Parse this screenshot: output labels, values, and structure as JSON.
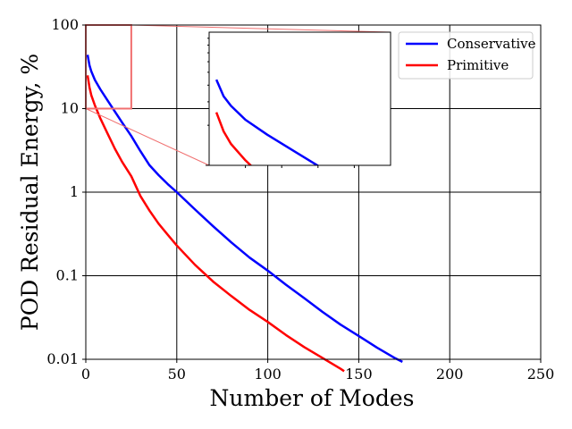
{
  "chart_data": {
    "type": "line",
    "xlabel": "Number of Modes",
    "ylabel": "POD Residual Energy, %",
    "xlim": [
      0,
      250
    ],
    "ylim": [
      0.01,
      100
    ],
    "yscale": "log",
    "xticks": [
      0,
      50,
      100,
      150,
      200,
      250
    ],
    "xtick_labels": [
      "0",
      "50",
      "100",
      "150",
      "200",
      "250"
    ],
    "yticks": [
      0.01,
      0.1,
      1,
      10,
      100
    ],
    "ytick_labels": [
      "0.01",
      "0.1",
      "1",
      "10",
      "100"
    ],
    "grid": true,
    "legend_position": "top-right",
    "series": [
      {
        "name": "Conservative",
        "color": "#0000ff",
        "x": [
          1,
          2,
          3,
          5,
          8,
          12,
          16,
          20,
          25,
          30,
          35,
          40,
          45,
          50,
          60,
          70,
          80,
          90,
          100,
          110,
          120,
          130,
          140,
          150,
          160,
          170,
          174
        ],
        "y": [
          44,
          33,
          28,
          22,
          17,
          12.5,
          9.2,
          6.8,
          4.7,
          3.1,
          2.1,
          1.6,
          1.25,
          1.0,
          0.62,
          0.39,
          0.25,
          0.165,
          0.115,
          0.078,
          0.054,
          0.037,
          0.026,
          0.019,
          0.0138,
          0.0103,
          0.0093
        ]
      },
      {
        "name": "Primitive",
        "color": "#ff0000",
        "x": [
          1,
          2,
          3,
          5,
          8,
          12,
          16,
          20,
          25,
          30,
          35,
          40,
          45,
          50,
          60,
          70,
          80,
          90,
          100,
          110,
          120,
          130,
          140,
          142
        ],
        "y": [
          25,
          18,
          14.5,
          10.9,
          7.6,
          5.0,
          3.3,
          2.3,
          1.55,
          0.9,
          0.6,
          0.42,
          0.31,
          0.23,
          0.135,
          0.085,
          0.057,
          0.039,
          0.028,
          0.0195,
          0.014,
          0.0104,
          0.0077,
          0.0072
        ]
      }
    ],
    "inset": {
      "xlim": [
        0,
        25
      ],
      "ylim": [
        10,
        100
      ],
      "yscale": "log"
    }
  }
}
